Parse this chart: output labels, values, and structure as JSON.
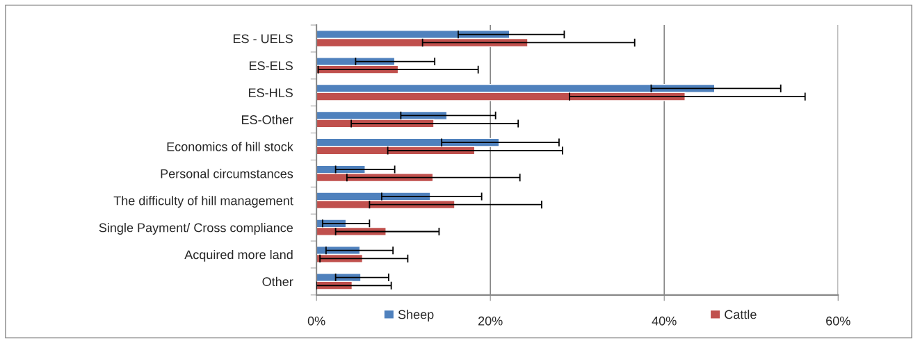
{
  "chart_data": {
    "type": "bar",
    "orientation": "horizontal",
    "categories": [
      "ES - UELS",
      "ES-ELS",
      "ES-HLS",
      "ES-Other",
      "Economics of hill stock",
      "Personal circumstances",
      "The difficulty of hill management",
      "Single Payment/ Cross compliance",
      "Acquired more land",
      "Other"
    ],
    "series": [
      {
        "name": "Sheep",
        "color": "#4f81bd",
        "values": [
          22.2,
          9.0,
          45.8,
          15.0,
          21.0,
          5.6,
          13.1,
          3.4,
          5.0,
          5.1
        ],
        "errors": [
          [
            16.3,
            28.5
          ],
          [
            4.5,
            13.6
          ],
          [
            38.5,
            53.4
          ],
          [
            9.7,
            20.6
          ],
          [
            14.4,
            27.9
          ],
          [
            2.2,
            9.0
          ],
          [
            7.5,
            19.0
          ],
          [
            0.7,
            6.1
          ],
          [
            1.1,
            8.8
          ],
          [
            2.2,
            8.3
          ]
        ]
      },
      {
        "name": "Cattle",
        "color": "#c0504d",
        "values": [
          24.3,
          9.4,
          42.4,
          13.5,
          18.2,
          13.4,
          15.9,
          8.0,
          5.3,
          4.1
        ],
        "errors": [
          [
            12.2,
            36.6
          ],
          [
            0.2,
            18.6
          ],
          [
            29.1,
            56.2
          ],
          [
            4.0,
            23.2
          ],
          [
            8.2,
            28.3
          ],
          [
            3.5,
            23.4
          ],
          [
            6.1,
            25.9
          ],
          [
            2.2,
            14.1
          ],
          [
            0.4,
            10.5
          ],
          [
            0.0,
            8.6
          ]
        ]
      }
    ],
    "xlim": [
      0,
      60
    ],
    "xticks": [
      {
        "value": 0,
        "label": "0%"
      },
      {
        "value": 20,
        "label": "20%"
      },
      {
        "value": 40,
        "label": "40%"
      },
      {
        "value": 60,
        "label": "60%"
      }
    ],
    "grid": "x",
    "legend": "bottom"
  }
}
